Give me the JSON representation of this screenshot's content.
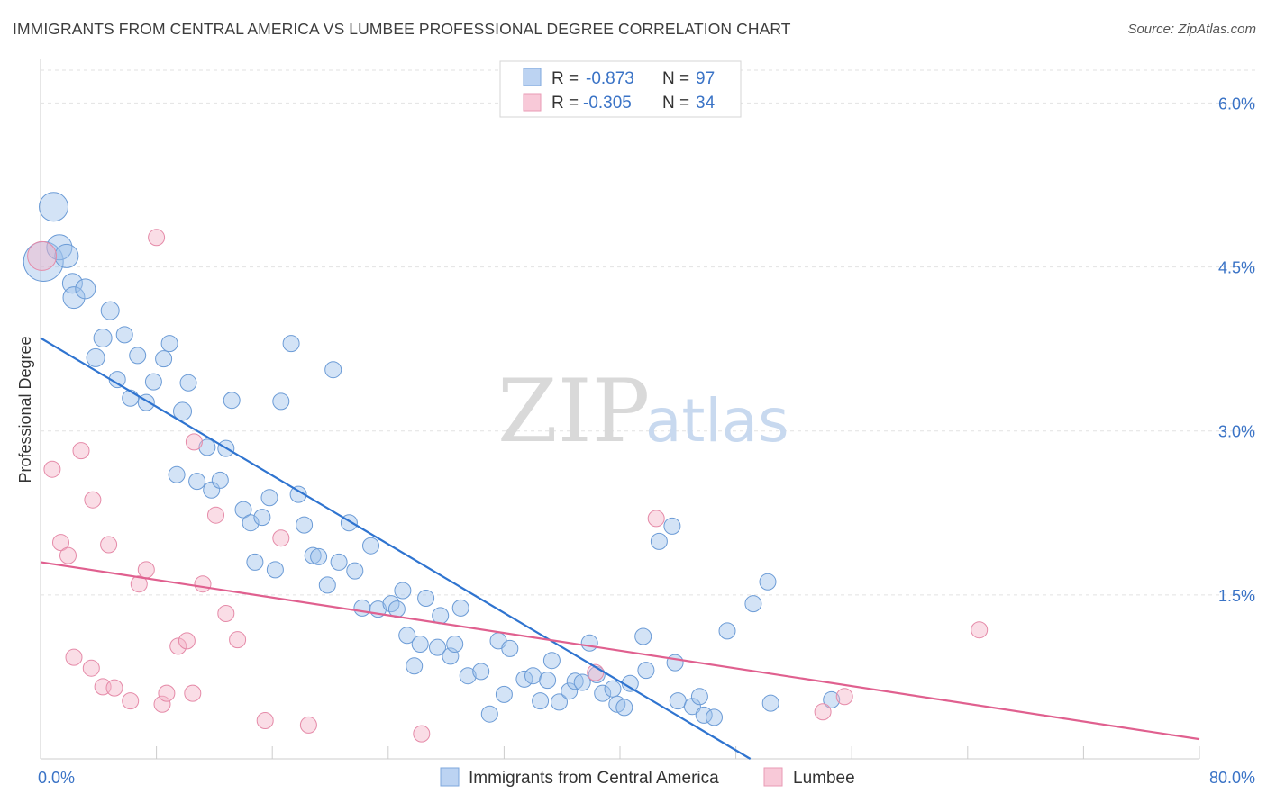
{
  "title": "IMMIGRANTS FROM CENTRAL AMERICA VS LUMBEE PROFESSIONAL DEGREE CORRELATION CHART",
  "source": "Source: ZipAtlas.com",
  "watermark": {
    "zip": "ZIP",
    "atlas": "atlas"
  },
  "chart_data": {
    "type": "scatter",
    "title": "IMMIGRANTS FROM CENTRAL AMERICA VS LUMBEE PROFESSIONAL DEGREE CORRELATION CHART",
    "xlabel": "",
    "ylabel": "Professional Degree",
    "xlim": [
      0,
      80
    ],
    "ylim": [
      0,
      6.3
    ],
    "x_tick_labels": [
      "0.0%",
      "80.0%"
    ],
    "y_ticks": [
      1.5,
      3.0,
      4.5,
      6.0
    ],
    "y_tick_labels": [
      "1.5%",
      "3.0%",
      "4.5%",
      "6.0%"
    ],
    "grid": true,
    "legend_position": "top-center",
    "legend": [
      {
        "series": "Immigrants from Central America",
        "r_label": "R =",
        "r_value": "-0.873",
        "n_label": "N =",
        "n_value": "97"
      },
      {
        "series": "Lumbee",
        "r_label": "R =",
        "r_value": "-0.305",
        "n_label": "N =",
        "n_value": "34"
      }
    ],
    "series": [
      {
        "name": "Immigrants from Central America",
        "color": "#9dc0ea",
        "stroke": "#6b9bd6",
        "trend_color": "#2f74d0",
        "trend": {
          "x0": 0,
          "y0": 3.85,
          "x1": 49,
          "y1": 0
        },
        "points": [
          {
            "x": 0.2,
            "y": 4.55,
            "s": 22
          },
          {
            "x": 0.9,
            "y": 5.05,
            "s": 16
          },
          {
            "x": 1.3,
            "y": 4.68,
            "s": 14
          },
          {
            "x": 1.8,
            "y": 4.6,
            "s": 13
          },
          {
            "x": 2.2,
            "y": 4.35,
            "s": 11
          },
          {
            "x": 2.3,
            "y": 4.22,
            "s": 12
          },
          {
            "x": 3.1,
            "y": 4.3,
            "s": 11
          },
          {
            "x": 4.8,
            "y": 4.1,
            "s": 10
          },
          {
            "x": 4.3,
            "y": 3.85,
            "s": 10
          },
          {
            "x": 5.8,
            "y": 3.88,
            "s": 9
          },
          {
            "x": 3.8,
            "y": 3.67,
            "s": 10
          },
          {
            "x": 6.7,
            "y": 3.69,
            "s": 9
          },
          {
            "x": 8.5,
            "y": 3.66,
            "s": 9
          },
          {
            "x": 8.9,
            "y": 3.8,
            "s": 9
          },
          {
            "x": 5.3,
            "y": 3.47,
            "s": 9
          },
          {
            "x": 7.8,
            "y": 3.45,
            "s": 9
          },
          {
            "x": 10.2,
            "y": 3.44,
            "s": 9
          },
          {
            "x": 6.2,
            "y": 3.3,
            "s": 9
          },
          {
            "x": 7.3,
            "y": 3.26,
            "s": 9
          },
          {
            "x": 9.8,
            "y": 3.18,
            "s": 10
          },
          {
            "x": 13.2,
            "y": 3.28,
            "s": 9
          },
          {
            "x": 16.6,
            "y": 3.27,
            "s": 9
          },
          {
            "x": 17.3,
            "y": 3.8,
            "s": 9
          },
          {
            "x": 20.2,
            "y": 3.56,
            "s": 9
          },
          {
            "x": 11.5,
            "y": 2.85,
            "s": 9
          },
          {
            "x": 12.8,
            "y": 2.84,
            "s": 9
          },
          {
            "x": 9.4,
            "y": 2.6,
            "s": 9
          },
          {
            "x": 10.8,
            "y": 2.54,
            "s": 9
          },
          {
            "x": 11.8,
            "y": 2.46,
            "s": 9
          },
          {
            "x": 12.4,
            "y": 2.55,
            "s": 9
          },
          {
            "x": 14.0,
            "y": 2.28,
            "s": 9
          },
          {
            "x": 15.8,
            "y": 2.39,
            "s": 9
          },
          {
            "x": 17.8,
            "y": 2.42,
            "s": 9
          },
          {
            "x": 14.5,
            "y": 2.16,
            "s": 9
          },
          {
            "x": 15.3,
            "y": 2.21,
            "s": 9
          },
          {
            "x": 18.2,
            "y": 2.14,
            "s": 9
          },
          {
            "x": 21.3,
            "y": 2.16,
            "s": 9
          },
          {
            "x": 22.8,
            "y": 1.95,
            "s": 9
          },
          {
            "x": 14.8,
            "y": 1.8,
            "s": 9
          },
          {
            "x": 16.2,
            "y": 1.73,
            "s": 9
          },
          {
            "x": 18.8,
            "y": 1.86,
            "s": 9
          },
          {
            "x": 19.2,
            "y": 1.85,
            "s": 9
          },
          {
            "x": 20.6,
            "y": 1.8,
            "s": 9
          },
          {
            "x": 21.7,
            "y": 1.72,
            "s": 9
          },
          {
            "x": 19.8,
            "y": 1.59,
            "s": 9
          },
          {
            "x": 22.2,
            "y": 1.38,
            "s": 9
          },
          {
            "x": 23.3,
            "y": 1.37,
            "s": 9
          },
          {
            "x": 24.2,
            "y": 1.42,
            "s": 9
          },
          {
            "x": 24.6,
            "y": 1.37,
            "s": 9
          },
          {
            "x": 25.0,
            "y": 1.54,
            "s": 9
          },
          {
            "x": 26.6,
            "y": 1.47,
            "s": 9
          },
          {
            "x": 27.6,
            "y": 1.31,
            "s": 9
          },
          {
            "x": 29.0,
            "y": 1.38,
            "s": 9
          },
          {
            "x": 25.3,
            "y": 1.13,
            "s": 9
          },
          {
            "x": 26.2,
            "y": 1.05,
            "s": 9
          },
          {
            "x": 27.4,
            "y": 1.02,
            "s": 9
          },
          {
            "x": 28.3,
            "y": 0.94,
            "s": 9
          },
          {
            "x": 28.6,
            "y": 1.05,
            "s": 9
          },
          {
            "x": 25.8,
            "y": 0.85,
            "s": 9
          },
          {
            "x": 29.5,
            "y": 0.76,
            "s": 9
          },
          {
            "x": 30.4,
            "y": 0.8,
            "s": 9
          },
          {
            "x": 31.6,
            "y": 1.08,
            "s": 9
          },
          {
            "x": 32.4,
            "y": 1.01,
            "s": 9
          },
          {
            "x": 32.0,
            "y": 0.59,
            "s": 9
          },
          {
            "x": 33.4,
            "y": 0.73,
            "s": 9
          },
          {
            "x": 34.0,
            "y": 0.76,
            "s": 9
          },
          {
            "x": 35.0,
            "y": 0.72,
            "s": 9
          },
          {
            "x": 35.3,
            "y": 0.9,
            "s": 9
          },
          {
            "x": 34.5,
            "y": 0.53,
            "s": 9
          },
          {
            "x": 35.8,
            "y": 0.52,
            "s": 9
          },
          {
            "x": 36.5,
            "y": 0.62,
            "s": 9
          },
          {
            "x": 36.9,
            "y": 0.71,
            "s": 9
          },
          {
            "x": 37.4,
            "y": 0.7,
            "s": 9
          },
          {
            "x": 37.9,
            "y": 1.06,
            "s": 9
          },
          {
            "x": 38.4,
            "y": 0.77,
            "s": 9
          },
          {
            "x": 38.8,
            "y": 0.6,
            "s": 9
          },
          {
            "x": 39.5,
            "y": 0.64,
            "s": 9
          },
          {
            "x": 39.8,
            "y": 0.5,
            "s": 9
          },
          {
            "x": 40.3,
            "y": 0.47,
            "s": 9
          },
          {
            "x": 40.7,
            "y": 0.69,
            "s": 9
          },
          {
            "x": 41.8,
            "y": 0.81,
            "s": 9
          },
          {
            "x": 41.6,
            "y": 1.12,
            "s": 9
          },
          {
            "x": 42.7,
            "y": 1.99,
            "s": 9
          },
          {
            "x": 43.6,
            "y": 2.13,
            "s": 9
          },
          {
            "x": 43.8,
            "y": 0.88,
            "s": 9
          },
          {
            "x": 44.0,
            "y": 0.53,
            "s": 9
          },
          {
            "x": 45.0,
            "y": 0.48,
            "s": 9
          },
          {
            "x": 45.5,
            "y": 0.57,
            "s": 9
          },
          {
            "x": 45.8,
            "y": 0.4,
            "s": 9
          },
          {
            "x": 46.5,
            "y": 0.38,
            "s": 9
          },
          {
            "x": 47.4,
            "y": 1.17,
            "s": 9
          },
          {
            "x": 49.2,
            "y": 1.42,
            "s": 9
          },
          {
            "x": 50.2,
            "y": 1.62,
            "s": 9
          },
          {
            "x": 50.4,
            "y": 0.51,
            "s": 9
          },
          {
            "x": 54.6,
            "y": 0.54,
            "s": 9
          },
          {
            "x": 31.0,
            "y": 0.41,
            "s": 9
          }
        ]
      },
      {
        "name": "Lumbee",
        "color": "#f4b3c8",
        "stroke": "#e58aa8",
        "trend_color": "#e0608f",
        "trend": {
          "x0": 0,
          "y0": 1.8,
          "x1": 80,
          "y1": 0.18
        },
        "points": [
          {
            "x": 0.1,
            "y": 4.6,
            "s": 16
          },
          {
            "x": 0.8,
            "y": 2.65,
            "s": 9
          },
          {
            "x": 1.4,
            "y": 1.98,
            "s": 9
          },
          {
            "x": 1.9,
            "y": 1.86,
            "s": 9
          },
          {
            "x": 2.3,
            "y": 0.93,
            "s": 9
          },
          {
            "x": 2.8,
            "y": 2.82,
            "s": 9
          },
          {
            "x": 3.5,
            "y": 0.83,
            "s": 9
          },
          {
            "x": 3.6,
            "y": 2.37,
            "s": 9
          },
          {
            "x": 4.3,
            "y": 0.66,
            "s": 9
          },
          {
            "x": 4.7,
            "y": 1.96,
            "s": 9
          },
          {
            "x": 5.1,
            "y": 0.65,
            "s": 9
          },
          {
            "x": 6.2,
            "y": 0.53,
            "s": 9
          },
          {
            "x": 6.8,
            "y": 1.6,
            "s": 9
          },
          {
            "x": 7.3,
            "y": 1.73,
            "s": 9
          },
          {
            "x": 8.0,
            "y": 4.77,
            "s": 9
          },
          {
            "x": 8.4,
            "y": 0.5,
            "s": 9
          },
          {
            "x": 8.7,
            "y": 0.6,
            "s": 9
          },
          {
            "x": 9.5,
            "y": 1.03,
            "s": 9
          },
          {
            "x": 10.1,
            "y": 1.08,
            "s": 9
          },
          {
            "x": 10.5,
            "y": 0.6,
            "s": 9
          },
          {
            "x": 10.6,
            "y": 2.9,
            "s": 9
          },
          {
            "x": 11.2,
            "y": 1.6,
            "s": 9
          },
          {
            "x": 12.1,
            "y": 2.23,
            "s": 9
          },
          {
            "x": 12.8,
            "y": 1.33,
            "s": 9
          },
          {
            "x": 13.6,
            "y": 1.09,
            "s": 9
          },
          {
            "x": 15.5,
            "y": 0.35,
            "s": 9
          },
          {
            "x": 16.6,
            "y": 2.02,
            "s": 9
          },
          {
            "x": 18.5,
            "y": 0.31,
            "s": 9
          },
          {
            "x": 26.3,
            "y": 0.23,
            "s": 9
          },
          {
            "x": 38.3,
            "y": 0.79,
            "s": 9
          },
          {
            "x": 42.5,
            "y": 2.2,
            "s": 9
          },
          {
            "x": 54.0,
            "y": 0.43,
            "s": 9
          },
          {
            "x": 55.5,
            "y": 0.57,
            "s": 9
          },
          {
            "x": 64.8,
            "y": 1.18,
            "s": 9
          }
        ]
      }
    ]
  }
}
